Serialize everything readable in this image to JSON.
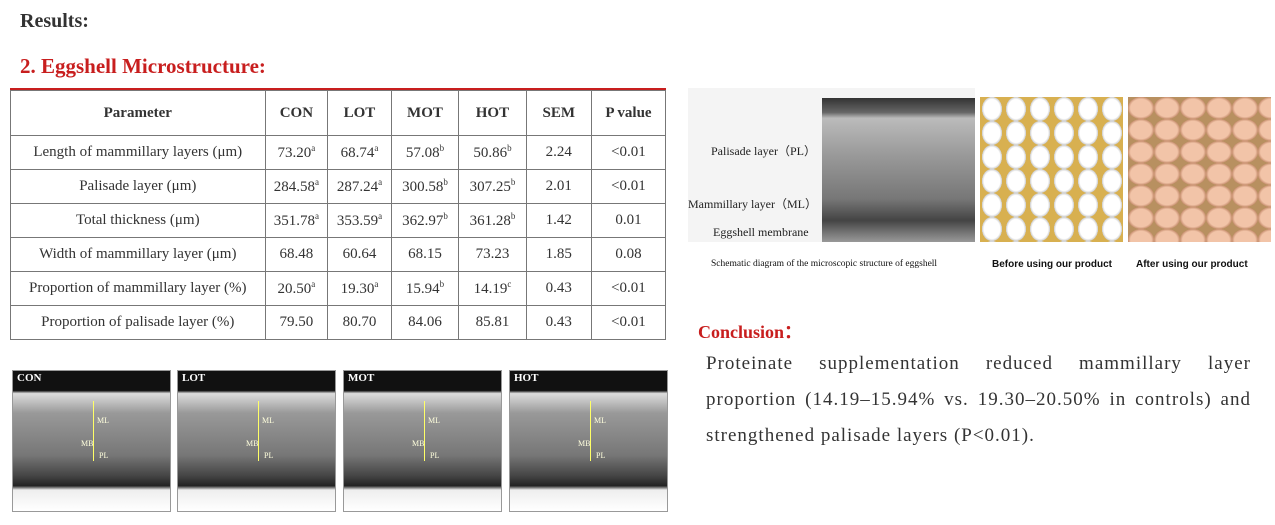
{
  "header": {
    "section": "Results:",
    "title": "2. Eggshell Microstructure:"
  },
  "table": {
    "columns": [
      "Parameter",
      "CON",
      "LOT",
      "MOT",
      "HOT",
      "SEM",
      "P value"
    ],
    "rows": [
      [
        "Length of mammillary layers (μm)",
        {
          "text": "73.20",
          "sup": "a"
        },
        {
          "text": "68.74",
          "sup": "a"
        },
        {
          "text": "57.08",
          "sup": "b"
        },
        {
          "text": "50.86",
          "sup": "b"
        },
        "2.24",
        "<0.01"
      ],
      [
        "Palisade layer (μm)",
        {
          "text": "284.58",
          "sup": "a"
        },
        {
          "text": "287.24",
          "sup": "a"
        },
        {
          "text": "300.58",
          "sup": "b"
        },
        {
          "text": "307.25",
          "sup": "b"
        },
        "2.01",
        "<0.01"
      ],
      [
        "Total thickness (μm)",
        {
          "text": "351.78",
          "sup": "a"
        },
        {
          "text": "353.59",
          "sup": "a"
        },
        {
          "text": "362.97",
          "sup": "b"
        },
        {
          "text": "361.28",
          "sup": "b"
        },
        "1.42",
        "0.01"
      ],
      [
        "Width of mammillary layer (μm)",
        "68.48",
        "60.64",
        "68.15",
        "73.23",
        "1.85",
        "0.08"
      ],
      [
        "Proportion of mammillary layer (%)",
        {
          "text": "20.50",
          "sup": "a"
        },
        {
          "text": "19.30",
          "sup": "a"
        },
        {
          "text": "15.94",
          "sup": "b"
        },
        {
          "text": "14.19",
          "sup": "c"
        },
        "0.43",
        "<0.01"
      ],
      [
        "Proportion of palisade layer (%)",
        "79.50",
        "80.70",
        "84.06",
        "85.81",
        "0.43",
        "<0.01"
      ]
    ]
  },
  "sem_images": [
    "CON",
    "LOT",
    "MOT",
    "HOT"
  ],
  "sem_markers": [
    "ML",
    "MB",
    "PL"
  ],
  "schematic": {
    "labels": [
      "Palisade layer（PL）",
      "Mammillary layer（ML）",
      "Eggshell membrane"
    ],
    "caption": "Schematic diagram of the microscopic structure of eggshell"
  },
  "photos": [
    "Before using our product",
    "After using our product"
  ],
  "conclusion": {
    "title": "Conclusion：",
    "text": "Proteinate supplementation reduced mammillary layer proportion (14.19–15.94% vs. 19.30–20.50% in controls) and strengthened palisade layers (P<0.01)."
  }
}
